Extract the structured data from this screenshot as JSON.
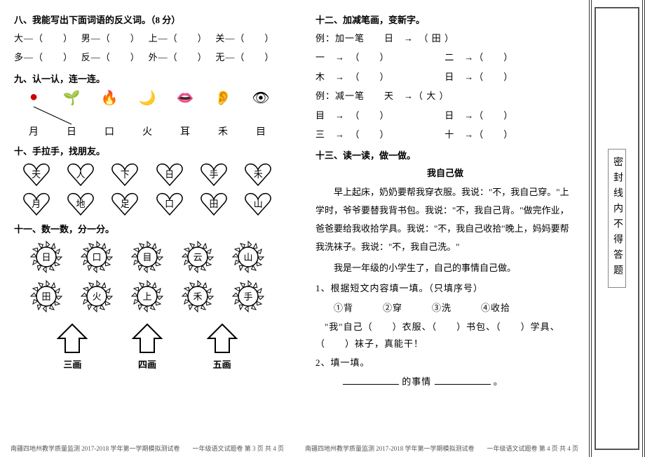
{
  "left": {
    "s8": {
      "title": "八、我能写出下面词语的反义词。（8 分）",
      "row1": [
        "大—（　　）",
        "男—（　　）",
        "上—（　　）",
        "关—（　　）"
      ],
      "row2": [
        "多—（　　）",
        "反—（　　）",
        "外—（　　）",
        "无—（　　）"
      ]
    },
    "s9": {
      "title": "九、认一认，连一连。",
      "icons": [
        "●",
        "🌱",
        "🔥",
        "🌙",
        "👄",
        "👂",
        "👁"
      ],
      "chars": [
        "月",
        "日",
        "口",
        "火",
        "耳",
        "禾",
        "目"
      ]
    },
    "s10": {
      "title": "十、手拉手，找朋友。",
      "row1": [
        "天",
        "人",
        "下",
        "日",
        "手",
        "禾"
      ],
      "row2": [
        "月",
        "地",
        "足",
        "口",
        "田",
        "山"
      ]
    },
    "s11": {
      "title": "十一、数一数，分一分。",
      "row1": [
        "日",
        "口",
        "目",
        "云",
        "山"
      ],
      "row2": [
        "田",
        "火",
        "上",
        "禾",
        "手"
      ],
      "labels": [
        "三画",
        "四画",
        "五画"
      ]
    },
    "footer": "南疆四地州教学质量监测 2017-2018 学年第一学期模拟测试卷　　一年级语文试题卷 第 3 页  共 4 页"
  },
  "right": {
    "s12": {
      "title": "十二、加减笔画，变新字。",
      "ex1": "例：加一笔　　日　→　（ 田 ）",
      "r1a": "一　→　（　　）",
      "r1b": "二　→（　　）",
      "r2a": "木　→　（　　）",
      "r2b": "日　→（　　）",
      "ex2": "例：减一笔　　天　→（ 大 ）",
      "r3a": "目　→　（　　）",
      "r3b": "日　→（　　）",
      "r4a": "三　→　（　　）",
      "r4b": "十　→（　　）"
    },
    "s13": {
      "title": "十三、读一读，做一做。",
      "ptitle": "我自己做",
      "p1": "早上起床，奶奶要帮我穿衣服。我说：\"不，我自己穿。\"上学时，爷爷要替我背书包。我说：\"不，我自己背。\"做完作业，爸爸要给我收拾学具。我说：\"不，我自己收拾\"晚上，妈妈要帮我洗袜子。我说：\"不，我自己洗。\"",
      "p2": "我是一年级的小学生了，自己的事情自己做。",
      "q1": "1、根据短文内容填一填。（只填序号）",
      "opts": "①背　　　②穿　　　③洗　　　④收拾",
      "fill": "\"我\"自己（　　）衣服、（　　）书包、（　　）学具、（　　）袜子，真能干！",
      "q2": "2、填一填。",
      "blank_label": "的事情",
      "end": "。"
    },
    "footer": "南疆四地州教学质量监测 2017-2018 学年第一学期模拟测试卷　　一年级语文试题卷 第 4 页  共 4 页"
  },
  "sidebar": {
    "text": "密封线内不得答题"
  }
}
